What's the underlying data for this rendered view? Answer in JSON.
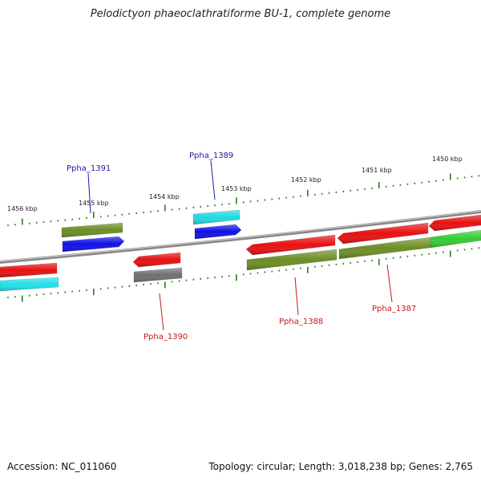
{
  "title": "Pelodictyon phaeoclathratiforme BU-1, complete genome",
  "footer": {
    "accession": "Accession: NC_011060",
    "stats": "Topology: circular; Length: 3,018,238 bp; Genes: 2,765"
  },
  "colors": {
    "backbone": "#888888",
    "tick": "#2e7d1e",
    "label_forward": "#1a1aa8",
    "label_reverse": "#c41818"
  },
  "scale_labels": [
    "1456 kbp",
    "1455 kbp",
    "1454 kbp",
    "1453 kbp",
    "1452 kbp",
    "1451 kbp",
    "1450 kbp"
  ],
  "gene_labels": [
    {
      "text": "Ppha_1391",
      "strand": "forward"
    },
    {
      "text": "Ppha_1389",
      "strand": "forward"
    },
    {
      "text": "Ppha_1390",
      "strand": "reverse"
    },
    {
      "text": "Ppha_1388",
      "strand": "reverse"
    },
    {
      "text": "Ppha_1387",
      "strand": "reverse"
    }
  ],
  "features": [
    {
      "id": "f1",
      "color": "#6b8e23"
    },
    {
      "id": "f2",
      "color": "#1010e8"
    },
    {
      "id": "f3",
      "color": "#20d8e0"
    },
    {
      "id": "f4",
      "color": "#1010e8"
    },
    {
      "id": "f5",
      "color": "#e81010"
    },
    {
      "id": "f6",
      "color": "#22e0e8"
    },
    {
      "id": "f7",
      "color": "#e81010"
    },
    {
      "id": "f8",
      "color": "#707070"
    },
    {
      "id": "f9",
      "color": "#e81010"
    },
    {
      "id": "f10",
      "color": "#e81010"
    },
    {
      "id": "f11",
      "color": "#e81010"
    },
    {
      "id": "f12",
      "color": "#6b8e23"
    },
    {
      "id": "f13",
      "color": "#6b8e23"
    },
    {
      "id": "f14",
      "color": "#33cc33"
    }
  ]
}
